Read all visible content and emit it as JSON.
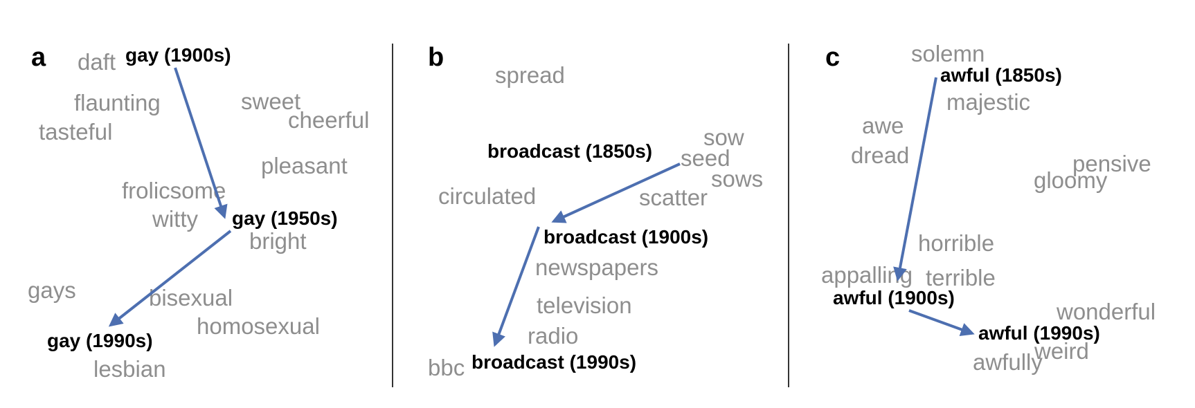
{
  "panels": [
    {
      "label": "a",
      "targets": [
        "gay (1900s)",
        "gay (1950s)",
        "gay (1990s)"
      ],
      "neighbors": [
        "daft",
        "flaunting",
        "tasteful",
        "sweet",
        "cheerful",
        "pleasant",
        "frolicsome",
        "witty",
        "bright",
        "gays",
        "bisexual",
        "homosexual",
        "lesbian"
      ]
    },
    {
      "label": "b",
      "targets": [
        "broadcast (1850s)",
        "broadcast (1900s)",
        "broadcast (1990s)"
      ],
      "neighbors": [
        "spread",
        "sow",
        "seed",
        "sows",
        "circulated",
        "scatter",
        "newspapers",
        "television",
        "radio",
        "bbc"
      ]
    },
    {
      "label": "c",
      "targets": [
        "awful (1850s)",
        "awful (1900s)",
        "awful (1990s)"
      ],
      "neighbors": [
        "solemn",
        "majestic",
        "awe",
        "dread",
        "pensive",
        "gloomy",
        "horrible",
        "appalling",
        "terrible",
        "wonderful",
        "weird",
        "awfully"
      ]
    }
  ],
  "colors": {
    "arrow": "#4d6fb0",
    "neighbor_text": "#8e8e8e",
    "target_text": "#000000",
    "divider": "#333333"
  }
}
